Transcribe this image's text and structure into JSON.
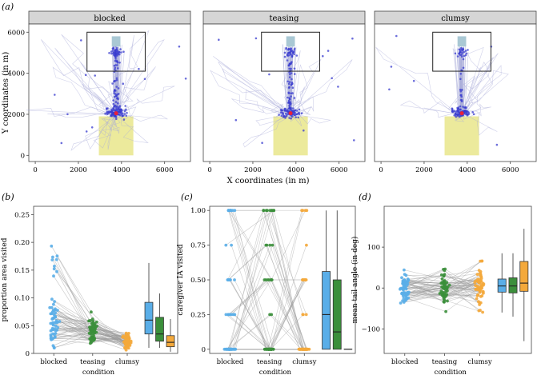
{
  "chart_data": [
    {
      "type": "scatter",
      "panel_label": "(a)",
      "facets": [
        "blocked",
        "teasing",
        "clumsy"
      ],
      "xlabel": "X coordinates (in m)",
      "ylabel": "Y coordinates (in m)",
      "xticks": [
        "0",
        "2000",
        "4000",
        "6000"
      ],
      "yticks": [
        "0",
        "2000",
        "4000",
        "6000"
      ],
      "xlim": [
        -300,
        7200
      ],
      "ylim": [
        -300,
        6400
      ],
      "colors": {
        "path": "#a9acd8",
        "points": "#3a3ccf",
        "marker": "#e8213a",
        "start_zone": "#ecea9c",
        "target_zone": "#a9c8d4"
      },
      "start_zone": {
        "x": [
          2950,
          4550
        ],
        "y": [
          0,
          1900
        ]
      },
      "target_zone": {
        "x": [
          3550,
          3950
        ],
        "y": [
          5300,
          5800
        ]
      },
      "target_box": {
        "x": [
          2400,
          5100
        ],
        "y": [
          4100,
          6000
        ]
      },
      "marker": {
        "x": 3750,
        "y": 2050
      }
    },
    {
      "type": "scatter",
      "panel_label": "(b)",
      "categories": [
        "blocked",
        "teasing",
        "clumsy"
      ],
      "xlabel": "condition",
      "ylabel": "proportion area visited",
      "yticks": [
        "0",
        "0.05",
        "0.10",
        "0.15",
        "0.20",
        "0.25"
      ],
      "ylim": [
        0,
        0.265
      ],
      "colors": [
        "#5aaee8",
        "#3b8f3b",
        "#f4a93b"
      ],
      "boxplots": [
        {
          "name": "blocked",
          "q1": 0.035,
          "median": 0.06,
          "q3": 0.092,
          "min": 0.01,
          "max": 0.163
        },
        {
          "name": "teasing",
          "q1": 0.022,
          "median": 0.035,
          "q3": 0.065,
          "min": 0.01,
          "max": 0.108
        },
        {
          "name": "clumsy",
          "q1": 0.012,
          "median": 0.02,
          "q3": 0.032,
          "min": 0.003,
          "max": 0.062
        }
      ]
    },
    {
      "type": "scatter",
      "panel_label": "(c)",
      "categories": [
        "blocked",
        "teasing",
        "clumsy"
      ],
      "xlabel": "condition",
      "ylabel": "caregiver IA visited",
      "yticks": [
        "0",
        "0.25",
        "0.50",
        "0.75",
        "1.00"
      ],
      "ylim": [
        -0.03,
        1.03
      ],
      "colors": [
        "#5aaee8",
        "#3b8f3b",
        "#f4a93b"
      ],
      "boxplots": [
        {
          "name": "blocked",
          "q1": 0.0,
          "median": 0.25,
          "q3": 0.56,
          "min": 0.0,
          "max": 1.0
        },
        {
          "name": "teasing",
          "q1": 0.0,
          "median": 0.125,
          "q3": 0.5,
          "min": 0.0,
          "max": 1.0
        },
        {
          "name": "clumsy",
          "q1": 0.0,
          "median": 0.0,
          "q3": 0.0,
          "min": 0.0,
          "max": 0.0
        }
      ]
    },
    {
      "type": "scatter",
      "panel_label": "(d)",
      "categories": [
        "blocked",
        "teasing",
        "clumsy"
      ],
      "xlabel": "condition",
      "ylabel": "mean tail angle (in deg)",
      "yticks": [
        "−100",
        "0",
        "100"
      ],
      "yvalues": [
        -100,
        0,
        100
      ],
      "ylim": [
        -160,
        200
      ],
      "colors": [
        "#5aaee8",
        "#3b8f3b",
        "#f4a93b"
      ],
      "boxplots": [
        {
          "name": "blocked",
          "q1": -10,
          "median": 5,
          "q3": 22,
          "min": -60,
          "max": 85
        },
        {
          "name": "teasing",
          "q1": -12,
          "median": 5,
          "q3": 25,
          "min": -70,
          "max": 85
        },
        {
          "name": "clumsy",
          "q1": -8,
          "median": 12,
          "q3": 65,
          "min": -130,
          "max": 145
        }
      ]
    }
  ]
}
